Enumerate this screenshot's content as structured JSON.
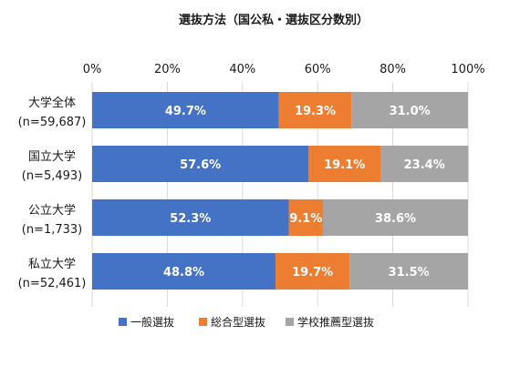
{
  "chart_data": {
    "type": "bar",
    "orientation": "horizontal",
    "stacked": true,
    "title": "選抜方法（国公私・選抜区分数別）",
    "categories": [
      {
        "name": "大学全体",
        "n": "(n=59,687)"
      },
      {
        "name": "国立大学",
        "n": "(n=5,493)"
      },
      {
        "name": "公立大学",
        "n": "(n=1,733)"
      },
      {
        "name": "私立大学",
        "n": "(n=52,461)"
      }
    ],
    "series": [
      {
        "name": "一般選抜",
        "color": "#4472C4",
        "values": [
          49.7,
          57.6,
          52.3,
          48.8
        ],
        "labels": [
          "49.7%",
          "57.6%",
          "52.3%",
          "48.8%"
        ]
      },
      {
        "name": "総合型選抜",
        "color": "#ED7D31",
        "values": [
          19.3,
          19.1,
          9.1,
          19.7
        ],
        "labels": [
          "19.3%",
          "19.1%",
          "9.1%",
          "19.7%"
        ]
      },
      {
        "name": "学校推薦型選抜",
        "color": "#A5A5A5",
        "values": [
          31.0,
          23.4,
          38.6,
          31.5
        ],
        "labels": [
          "31.0%",
          "23.4%",
          "38.6%",
          "31.5%"
        ]
      }
    ],
    "x_ticks": [
      "0%",
      "20%",
      "40%",
      "60%",
      "80%",
      "100%"
    ],
    "x_range": [
      0,
      100
    ],
    "grid": true,
    "legend_position": "bottom"
  }
}
